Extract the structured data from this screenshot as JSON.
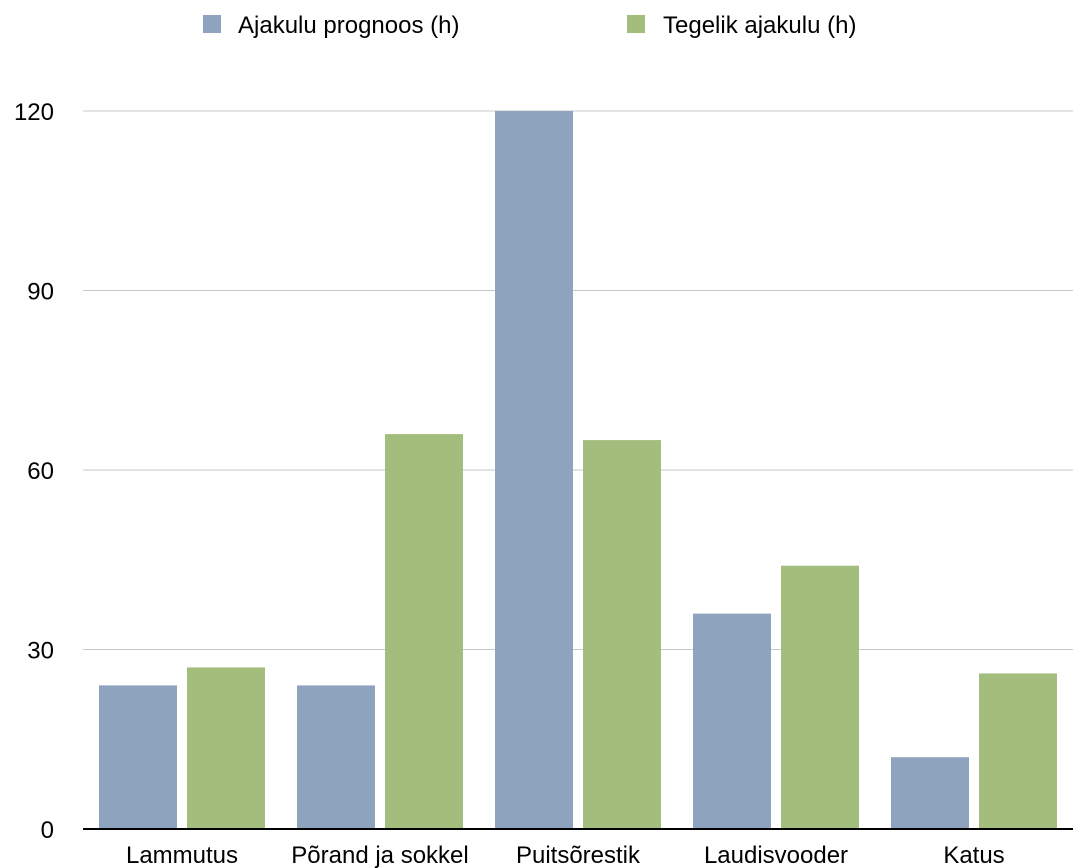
{
  "chart_data": {
    "type": "bar",
    "title": "",
    "xlabel": "",
    "ylabel": "",
    "categories": [
      "Lammutus",
      "Põrand ja sokkel",
      "Puitsõrestik",
      "Laudisvooder",
      "Katus"
    ],
    "series": [
      {
        "name": "Ajakulu prognoos (h)",
        "color": "#8ea3bd",
        "values": [
          24,
          24,
          120,
          36,
          12
        ]
      },
      {
        "name": "Tegelik ajakulu (h)",
        "color": "#a3bd7c",
        "values": [
          27,
          66,
          65,
          44,
          26
        ]
      }
    ],
    "ylim": [
      0,
      120
    ],
    "yticks": [
      0,
      30,
      60,
      90,
      120
    ],
    "grid": true,
    "legend_position": "top"
  }
}
